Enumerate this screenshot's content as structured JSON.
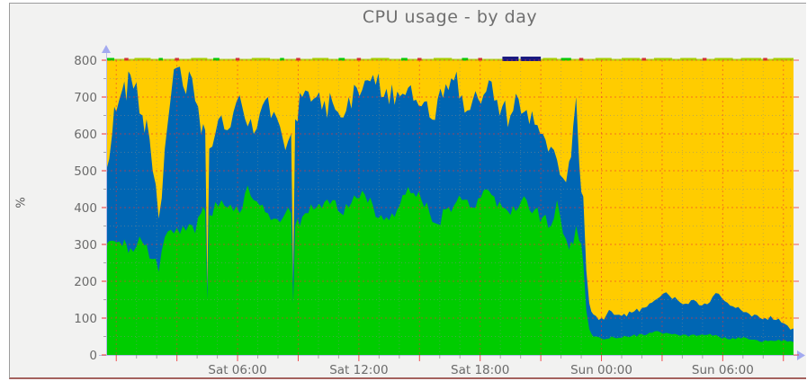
{
  "window": {
    "background": "#f2f2f1",
    "border_color": "#9c9c9c",
    "bottom_border_color": "#a4625e"
  },
  "chart_data": {
    "type": "area",
    "stacked": true,
    "title": "CPU usage - by day",
    "ylabel": "%",
    "xlabel": "",
    "ylim": [
      0,
      800
    ],
    "grid": true,
    "legend_position": "none",
    "y_ticks": [
      0,
      100,
      200,
      300,
      400,
      500,
      600,
      700,
      800
    ],
    "y_minor_step": 50,
    "x_range_hours": [
      0,
      34
    ],
    "x_ticks": [
      {
        "t": 6.5,
        "label": "Sat 06:00"
      },
      {
        "t": 12.5,
        "label": "Sat 12:00"
      },
      {
        "t": 18.5,
        "label": "Sat 18:00"
      },
      {
        "t": 24.5,
        "label": "Sun 00:00"
      },
      {
        "t": 30.5,
        "label": "Sun 06:00"
      }
    ],
    "x_major_grid_hours": 3,
    "x_minor_grid_hours": 1,
    "colors": {
      "green_area": "#00cc00",
      "blue_area": "#0066b3",
      "yellow_fill": "#ffcc00",
      "cap_lime": "#a8cf00",
      "cap_green": "#00cc00",
      "cap_navy": "#1a1a80",
      "cap_red": "#d03030",
      "grid_minor": "#8a8a8a",
      "grid_major": "#ee3333",
      "axis_arrow": "#a3aaf0",
      "axis_line": "#b9bce8",
      "tick_label": "#6b6b6b",
      "title": "#6f6f6f"
    },
    "series": [
      {
        "name": "green-area (bottom of stack)",
        "color": "#00cc00"
      },
      {
        "name": "blue-area (stacked on green)",
        "color": "#0066b3"
      },
      {
        "name": "yellow-fill (remainder to 800%)",
        "color": "#ffcc00"
      }
    ],
    "points_format": [
      "t_hours",
      "green_top_pct",
      "blue_stack_top_pct"
    ],
    "points": [
      [
        0,
        300,
        500
      ],
      [
        0.3,
        310,
        600
      ],
      [
        0.5,
        305,
        660
      ],
      [
        0.8,
        295,
        720
      ],
      [
        1,
        300,
        690
      ],
      [
        1.2,
        290,
        760
      ],
      [
        1.5,
        295,
        740
      ],
      [
        1.8,
        305,
        650
      ],
      [
        2,
        300,
        640
      ],
      [
        2.3,
        260,
        500
      ],
      [
        2.6,
        225,
        370
      ],
      [
        2.9,
        320,
        560
      ],
      [
        3.2,
        340,
        700
      ],
      [
        3.5,
        345,
        780
      ],
      [
        3.8,
        350,
        730
      ],
      [
        4.1,
        355,
        770
      ],
      [
        4.4,
        330,
        690
      ],
      [
        4.7,
        385,
        600
      ],
      [
        4.9,
        390,
        610
      ],
      [
        5,
        150,
        180
      ],
      [
        5.1,
        380,
        560
      ],
      [
        5.4,
        415,
        600
      ],
      [
        5.7,
        420,
        650
      ],
      [
        6,
        400,
        610
      ],
      [
        6.3,
        390,
        660
      ],
      [
        6.6,
        385,
        705
      ],
      [
        7,
        460,
        620
      ],
      [
        7.3,
        420,
        600
      ],
      [
        7.6,
        405,
        655
      ],
      [
        8,
        385,
        700
      ],
      [
        8.3,
        370,
        660
      ],
      [
        8.6,
        360,
        620
      ],
      [
        9,
        400,
        580
      ],
      [
        9.15,
        385,
        600
      ],
      [
        9.25,
        140,
        200
      ],
      [
        9.35,
        350,
        640
      ],
      [
        9.7,
        375,
        700
      ],
      [
        10,
        385,
        715
      ],
      [
        10.4,
        400,
        700
      ],
      [
        10.8,
        415,
        690
      ],
      [
        11.2,
        420,
        685
      ],
      [
        11.6,
        385,
        645
      ],
      [
        12,
        400,
        700
      ],
      [
        12.4,
        425,
        725
      ],
      [
        12.8,
        435,
        745
      ],
      [
        13.2,
        405,
        760
      ],
      [
        13.6,
        380,
        700
      ],
      [
        14,
        365,
        680
      ],
      [
        14.4,
        395,
        715
      ],
      [
        14.8,
        435,
        705
      ],
      [
        15.2,
        440,
        690
      ],
      [
        15.6,
        420,
        675
      ],
      [
        16,
        385,
        645
      ],
      [
        16.4,
        355,
        695
      ],
      [
        16.8,
        395,
        735
      ],
      [
        17.2,
        405,
        745
      ],
      [
        17.6,
        420,
        705
      ],
      [
        18,
        400,
        665
      ],
      [
        18.4,
        425,
        695
      ],
      [
        18.8,
        450,
        715
      ],
      [
        19.2,
        430,
        690
      ],
      [
        19.6,
        400,
        675
      ],
      [
        20,
        380,
        650
      ],
      [
        20.4,
        400,
        695
      ],
      [
        20.8,
        420,
        665
      ],
      [
        21.2,
        395,
        625
      ],
      [
        21.6,
        375,
        600
      ],
      [
        22,
        350,
        565
      ],
      [
        22.3,
        420,
        530
      ],
      [
        22.6,
        330,
        480
      ],
      [
        22.9,
        285,
        525
      ],
      [
        23.1,
        300,
        620
      ],
      [
        23.25,
        350,
        700
      ],
      [
        23.4,
        310,
        520
      ],
      [
        23.6,
        250,
        430
      ],
      [
        23.75,
        120,
        230
      ],
      [
        23.9,
        70,
        140
      ],
      [
        24.1,
        50,
        110
      ],
      [
        24.5,
        45,
        100
      ],
      [
        25,
        50,
        118
      ],
      [
        25.5,
        46,
        106
      ],
      [
        26,
        52,
        115
      ],
      [
        26.5,
        56,
        128
      ],
      [
        27,
        60,
        142
      ],
      [
        27.4,
        62,
        158
      ],
      [
        27.7,
        60,
        170
      ],
      [
        28,
        56,
        152
      ],
      [
        28.4,
        52,
        142
      ],
      [
        28.8,
        50,
        138
      ],
      [
        29.2,
        52,
        145
      ],
      [
        29.6,
        54,
        140
      ],
      [
        30,
        52,
        158
      ],
      [
        30.3,
        50,
        166
      ],
      [
        30.6,
        48,
        146
      ],
      [
        31,
        46,
        132
      ],
      [
        31.4,
        45,
        122
      ],
      [
        31.8,
        42,
        112
      ],
      [
        32.2,
        40,
        108
      ],
      [
        32.6,
        40,
        100
      ],
      [
        33,
        38,
        96
      ],
      [
        33.4,
        37,
        88
      ],
      [
        33.7,
        36,
        80
      ],
      [
        34,
        35,
        72
      ]
    ],
    "cap_marks": [
      [
        0,
        0.4,
        "cap_green"
      ],
      [
        0.9,
        1.1,
        "cap_red"
      ],
      [
        1.4,
        2.2,
        "cap_lime"
      ],
      [
        2.6,
        2.8,
        "cap_green"
      ],
      [
        3.4,
        3.6,
        "cap_red"
      ],
      [
        4.2,
        5,
        "cap_lime"
      ],
      [
        5.3,
        5.6,
        "cap_green"
      ],
      [
        6.4,
        6.6,
        "cap_red"
      ],
      [
        7.2,
        8.1,
        "cap_lime"
      ],
      [
        8.6,
        8.8,
        "cap_green"
      ],
      [
        9.4,
        9.6,
        "cap_red"
      ],
      [
        10.2,
        11,
        "cap_lime"
      ],
      [
        11.5,
        11.8,
        "cap_green"
      ],
      [
        12.4,
        12.6,
        "cap_red"
      ],
      [
        13.1,
        14,
        "cap_lime"
      ],
      [
        14.6,
        14.9,
        "cap_green"
      ],
      [
        15.4,
        15.6,
        "cap_red"
      ],
      [
        16.2,
        17.1,
        "cap_lime"
      ],
      [
        17.6,
        17.9,
        "cap_green"
      ],
      [
        18.4,
        18.6,
        "cap_red"
      ],
      [
        19.6,
        20.4,
        "cap_navy"
      ],
      [
        20.5,
        21.5,
        "cap_navy"
      ],
      [
        21.6,
        22.3,
        "cap_lime"
      ],
      [
        22.5,
        23,
        "cap_green"
      ],
      [
        23.4,
        23.6,
        "cap_red"
      ],
      [
        24.2,
        25,
        "cap_lime"
      ],
      [
        25.5,
        26.4,
        "cap_lime"
      ],
      [
        26.5,
        26.7,
        "cap_red"
      ],
      [
        27.1,
        28,
        "cap_lime"
      ],
      [
        28.4,
        29.2,
        "cap_lime"
      ],
      [
        29.5,
        29.7,
        "cap_red"
      ],
      [
        30.1,
        31,
        "cap_lime"
      ],
      [
        31.4,
        32.4,
        "cap_lime"
      ],
      [
        32.5,
        32.7,
        "cap_red"
      ],
      [
        33,
        34,
        "cap_lime"
      ]
    ],
    "noise": {
      "green_amp": 22,
      "blue_amp": 45,
      "quiet_green_amp": 5,
      "quiet_blue_amp": 9,
      "seed": 7
    }
  }
}
